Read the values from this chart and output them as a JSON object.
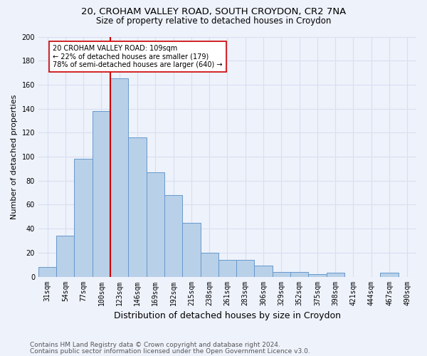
{
  "title1": "20, CROHAM VALLEY ROAD, SOUTH CROYDON, CR2 7NA",
  "title2": "Size of property relative to detached houses in Croydon",
  "xlabel": "Distribution of detached houses by size in Croydon",
  "ylabel": "Number of detached properties",
  "footer1": "Contains HM Land Registry data © Crown copyright and database right 2024.",
  "footer2": "Contains public sector information licensed under the Open Government Licence v3.0.",
  "bin_labels": [
    "31sqm",
    "54sqm",
    "77sqm",
    "100sqm",
    "123sqm",
    "146sqm",
    "169sqm",
    "192sqm",
    "215sqm",
    "238sqm",
    "261sqm",
    "283sqm",
    "306sqm",
    "329sqm",
    "352sqm",
    "375sqm",
    "398sqm",
    "421sqm",
    "444sqm",
    "467sqm",
    "490sqm"
  ],
  "bar_heights": [
    8,
    34,
    98,
    138,
    165,
    116,
    87,
    68,
    45,
    20,
    14,
    14,
    9,
    4,
    4,
    2,
    3,
    0,
    0,
    3,
    0
  ],
  "bar_color": "#b8d0e8",
  "bar_edge_color": "#6699cc",
  "vline_x": 3.5,
  "vline_color": "#cc0000",
  "annotation_text": "20 CROHAM VALLEY ROAD: 109sqm\n← 22% of detached houses are smaller (179)\n78% of semi-detached houses are larger (640) →",
  "annotation_box_color": "#ffffff",
  "annotation_box_edge": "#cc0000",
  "ylim": [
    0,
    200
  ],
  "yticks": [
    0,
    20,
    40,
    60,
    80,
    100,
    120,
    140,
    160,
    180,
    200
  ],
  "background_color": "#eef2fb",
  "grid_color": "#d8dff0",
  "title1_fontsize": 9.5,
  "title2_fontsize": 8.5,
  "axis_label_fontsize": 8,
  "tick_fontsize": 7,
  "footer_fontsize": 6.5
}
